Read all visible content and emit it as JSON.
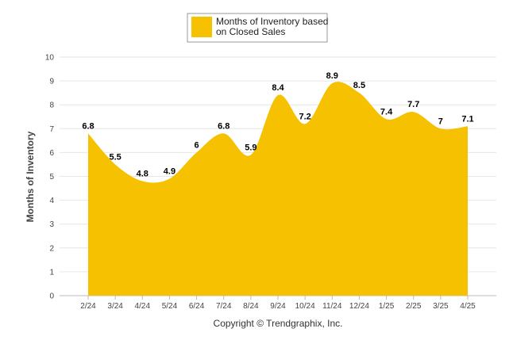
{
  "chart_data": {
    "type": "area",
    "categories": [
      "2/24",
      "3/24",
      "4/24",
      "5/24",
      "6/24",
      "7/24",
      "8/24",
      "9/24",
      "10/24",
      "11/24",
      "12/24",
      "1/25",
      "2/25",
      "3/25",
      "4/25"
    ],
    "series": [
      {
        "name": "Months of Inventory based on Closed Sales",
        "values": [
          6.8,
          5.5,
          4.8,
          4.9,
          6,
          6.8,
          5.9,
          8.4,
          7.2,
          8.9,
          8.5,
          7.4,
          7.7,
          7,
          7.1
        ]
      }
    ],
    "ylabel": "Months of Inventory",
    "xlabel": "",
    "ylim": [
      0,
      10
    ],
    "yticks": [
      0,
      1,
      2,
      3,
      4,
      5,
      6,
      7,
      8,
      9,
      10
    ],
    "grid": true,
    "legend": {
      "placement": "top-center",
      "lines": [
        "Months of Inventory based",
        "on Closed Sales"
      ]
    },
    "fill_color": "#F5C100",
    "footer": "Copyright © Trendgraphix, Inc."
  }
}
